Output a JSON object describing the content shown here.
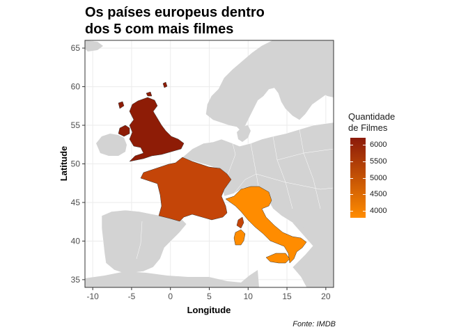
{
  "title": {
    "line1": "Os países europeus dentro",
    "line2": "dos 5 com mais filmes"
  },
  "x_axis": {
    "label": "Longitude",
    "ticks": [
      "-10",
      "-5",
      "0",
      "5",
      "10",
      "15",
      "20"
    ]
  },
  "y_axis": {
    "label": "Latitude",
    "ticks": [
      "35",
      "40",
      "45",
      "50",
      "55",
      "60",
      "65"
    ]
  },
  "legend": {
    "title_line1": "Quantidade",
    "title_line2": "de Filmes",
    "labels": [
      "6000",
      "5500",
      "5000",
      "4500",
      "4000"
    ],
    "color_high": "#8B1A0A",
    "color_low": "#FF8C00"
  },
  "caption": "Fonte: IMDB",
  "colors": {
    "land": "#D3D3D3",
    "panel_grid": "#EBEBEB",
    "uk": "#8E1C06",
    "france": "#C44508",
    "italy": "#FF8C00"
  },
  "chart_data": {
    "type": "map",
    "xlim": [
      -11,
      21
    ],
    "ylim": [
      34,
      66
    ],
    "regions": [
      {
        "country": "UK",
        "quantity": 6000
      },
      {
        "country": "France",
        "quantity": 5000
      },
      {
        "country": "Italy",
        "quantity": 4000
      }
    ],
    "legend_range": [
      3800,
      6200
    ]
  }
}
